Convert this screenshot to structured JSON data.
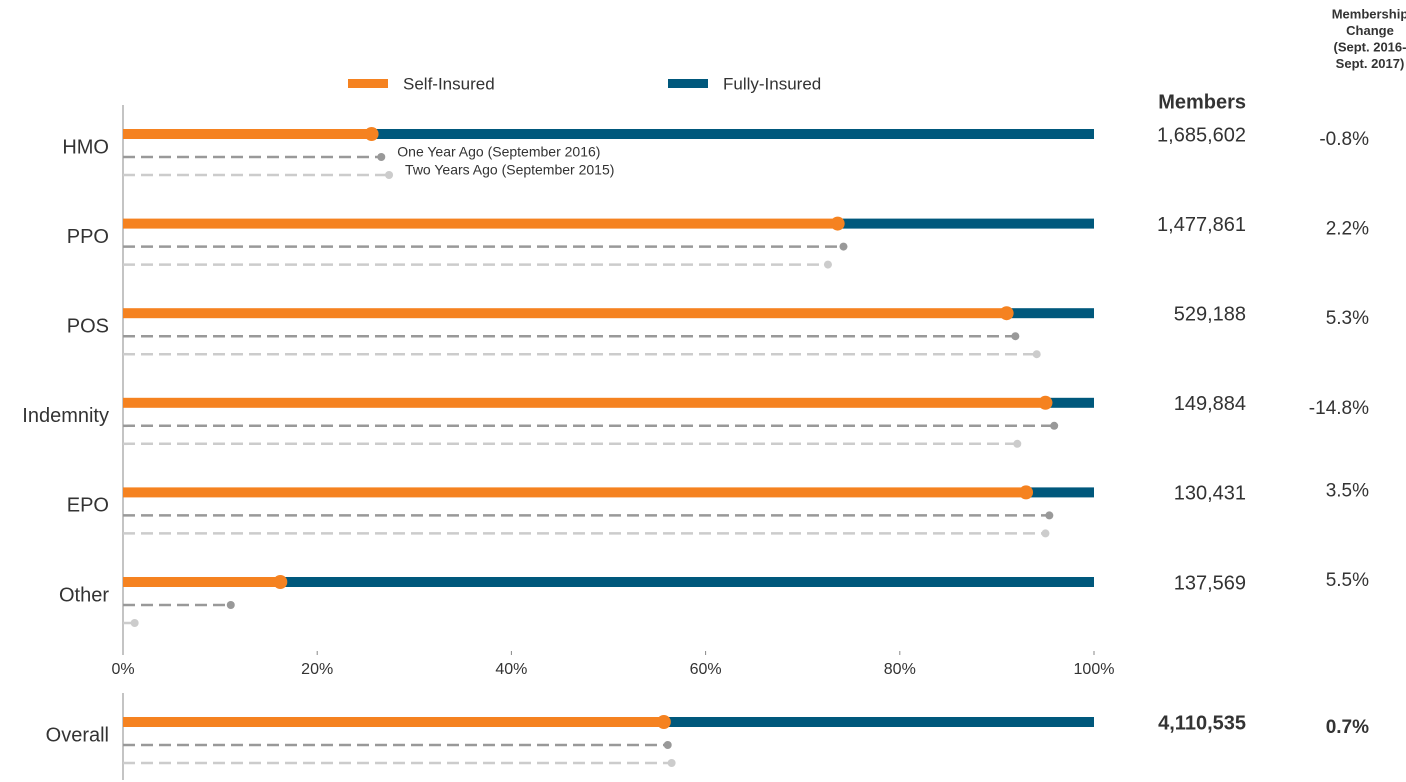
{
  "chart_data": [
    {
      "type": "bar",
      "categories": [
        "HMO",
        "PPO",
        "POS",
        "Indemnity",
        "EPO",
        "Other"
      ],
      "series": [
        {
          "name": "Self-Insured",
          "color": "#f58220",
          "values": [
            25.6,
            73.6,
            91.0,
            95.0,
            93.0,
            16.2
          ]
        },
        {
          "name": "Fully-Insured",
          "color": "#00587c",
          "values": [
            74.4,
            26.4,
            9.0,
            5.0,
            7.0,
            83.8
          ]
        },
        {
          "name": "One Year Ago (September 2016)",
          "color": "#999999",
          "values": [
            26.6,
            74.2,
            91.9,
            95.9,
            95.4,
            11.1
          ]
        },
        {
          "name": "Two Years Ago (September 2015)",
          "color": "#cccccc",
          "values": [
            27.4,
            72.6,
            94.1,
            92.1,
            95.0,
            1.2
          ]
        }
      ],
      "xlim": [
        0,
        100
      ],
      "xticks": [
        {
          "value": 0,
          "label": "0%"
        },
        {
          "value": 20,
          "label": "20%"
        },
        {
          "value": 40,
          "label": "40%"
        },
        {
          "value": 60,
          "label": "60%"
        },
        {
          "value": 80,
          "label": "80%"
        },
        {
          "value": 100,
          "label": "100%"
        }
      ],
      "members_header": "Members",
      "change_header": [
        "Membership",
        "Change",
        "(Sept. 2016-",
        "Sept. 2017)"
      ],
      "members": [
        "1,685,602",
        "1,477,861",
        "529,188",
        "149,884",
        "130,431",
        "137,569"
      ],
      "changes": [
        "-0.8%",
        "2.2%",
        "5.3%",
        "-14.8%",
        "3.5%",
        "5.5%"
      ]
    },
    {
      "type": "bar",
      "categories": [
        "Overall"
      ],
      "series": [
        {
          "color": "#f58220",
          "values": [
            55.7
          ]
        },
        {
          "color": "#00587c",
          "values": [
            44.3
          ]
        },
        {
          "color": "#999999",
          "values": [
            56.1
          ]
        },
        {
          "color": "#cccccc",
          "values": [
            56.5
          ]
        }
      ],
      "xlim": [
        0,
        100
      ],
      "members": [
        "4,110,535"
      ],
      "changes": [
        "0.7%"
      ]
    }
  ]
}
